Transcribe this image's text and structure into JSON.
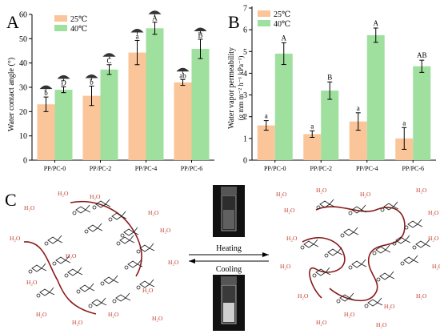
{
  "chart_data": [
    {
      "panel": "A",
      "type": "bar",
      "categories": [
        "PP/PC-0",
        "PP/PC-2",
        "PP/PC-4",
        "PP/PC-6"
      ],
      "ylabel": "Water contact angle (°)",
      "ylim": [
        0,
        60
      ],
      "yticks": [
        0,
        10,
        20,
        30,
        40,
        50,
        60
      ],
      "legend_position": "top-left",
      "series": [
        {
          "name": "25℃",
          "color": "#fbc59a",
          "values": [
            23,
            26.5,
            44.3,
            32
          ],
          "errors": [
            3,
            4,
            5,
            1.2
          ],
          "letters": [
            "b",
            "b",
            "a",
            "ab"
          ]
        },
        {
          "name": "40℃",
          "color": "#9fe09f",
          "values": [
            29,
            37.3,
            54.3,
            45.8
          ],
          "errors": [
            1.2,
            2,
            2.5,
            4
          ],
          "letters": [
            "D",
            "C",
            "A",
            "B"
          ]
        }
      ]
    },
    {
      "panel": "B",
      "type": "bar",
      "categories": [
        "PP/PC-0",
        "PP/PC-2",
        "PP/PC-4",
        "PP/PC-6"
      ],
      "ylabel": "Water vapor permeability",
      "ylabel2": "(g mm m⁻² h⁻¹ kPa⁻¹)",
      "ylim": [
        0,
        7
      ],
      "yticks": [
        0,
        1,
        2,
        3,
        4,
        5,
        6,
        7
      ],
      "legend_position": "top-left",
      "series": [
        {
          "name": "25℃",
          "color": "#fbc59a",
          "values": [
            1.6,
            1.2,
            1.78,
            1.0
          ],
          "errors": [
            0.22,
            0.15,
            0.4,
            0.5
          ],
          "letters": [
            "a",
            "a",
            "a",
            "a"
          ]
        },
        {
          "name": "40℃",
          "color": "#9fe09f",
          "values": [
            4.9,
            3.2,
            5.75,
            4.32
          ],
          "errors": [
            0.5,
            0.4,
            0.33,
            0.28
          ],
          "letters": [
            "A",
            "B",
            "A",
            "AB"
          ]
        }
      ]
    }
  ],
  "scheme": {
    "panel_label": "C",
    "heating_label": "Heating",
    "cooling_label": "Cooling",
    "water_label": "H₂O"
  }
}
